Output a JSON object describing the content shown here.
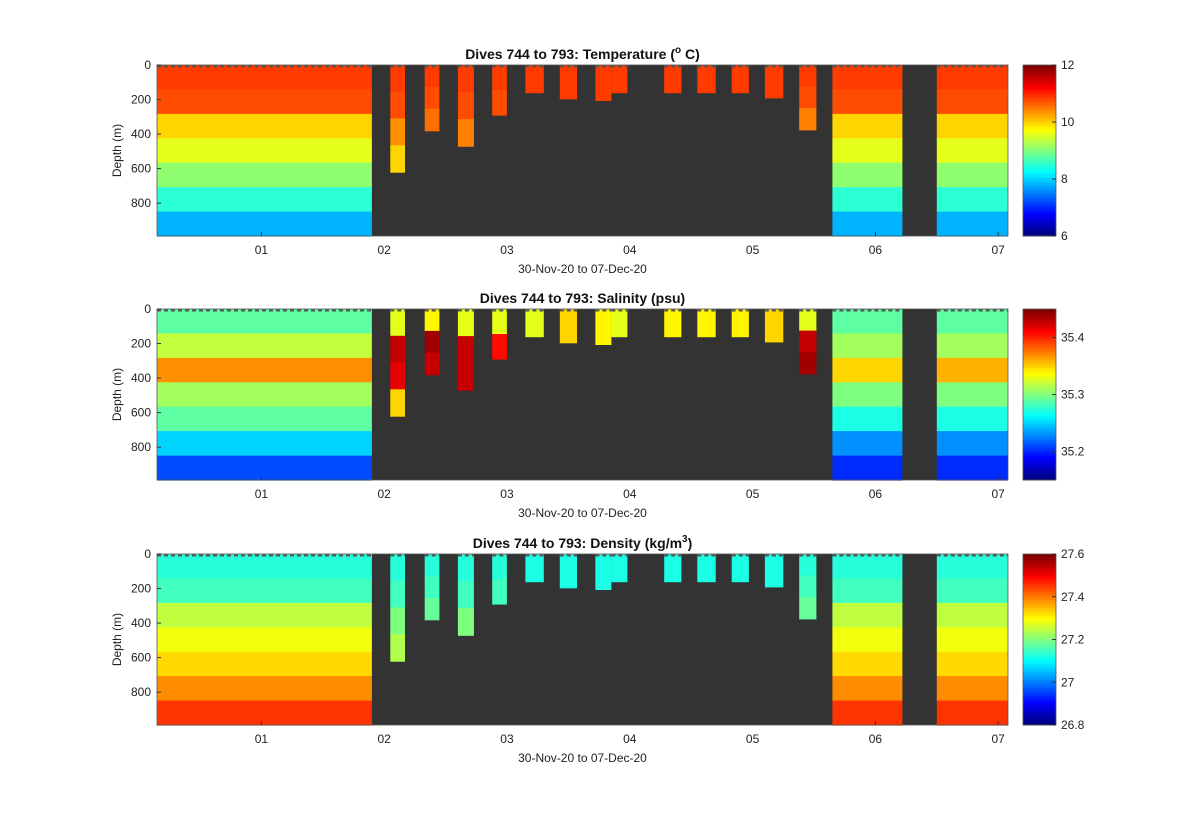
{
  "chart_data": [
    {
      "type": "heatmap",
      "title_main": "Dives 744 to 793: Temperature (",
      "title_sup": "o",
      "title_end": " C)",
      "xlabel": "30-Nov-20 to 07-Dec-20",
      "ylabel": "Depth (m)",
      "x_ticks": [
        "01",
        "02",
        "03",
        "04",
        "05",
        "06",
        "07"
      ],
      "y_ticks": [
        "0",
        "200",
        "400",
        "600",
        "800"
      ],
      "ylim": [
        0,
        990
      ],
      "colorbar_ticks": [
        "12",
        "10",
        "8",
        "6"
      ],
      "clim": [
        6,
        12
      ],
      "colormap": "jet",
      "no_data_color": "#333333",
      "profiles": [
        {
          "start_day": 0.0,
          "end_day": 1.9,
          "max_depth": 990,
          "values": [
            10.9,
            10.8,
            10.0,
            9.6,
            9.1,
            8.5,
            7.8
          ]
        },
        {
          "start_day": 2.05,
          "end_day": 2.17,
          "max_depth": 620,
          "values": [
            10.9,
            10.8,
            10.4,
            10.0
          ]
        },
        {
          "start_day": 2.33,
          "end_day": 2.45,
          "max_depth": 380,
          "values": [
            10.9,
            10.8,
            10.6
          ]
        },
        {
          "start_day": 2.6,
          "end_day": 2.73,
          "max_depth": 470,
          "values": [
            10.9,
            10.8,
            10.5
          ]
        },
        {
          "start_day": 2.88,
          "end_day": 3.0,
          "max_depth": 290,
          "values": [
            10.9,
            10.8
          ]
        },
        {
          "start_day": 3.15,
          "end_day": 3.3,
          "max_depth": 160,
          "values": [
            10.9
          ]
        },
        {
          "start_day": 3.43,
          "end_day": 3.57,
          "max_depth": 195,
          "values": [
            10.9
          ]
        },
        {
          "start_day": 3.72,
          "end_day": 3.85,
          "max_depth": 205,
          "values": [
            10.9
          ]
        },
        {
          "start_day": 3.85,
          "end_day": 3.98,
          "max_depth": 160,
          "values": [
            10.9
          ]
        },
        {
          "start_day": 4.28,
          "end_day": 4.42,
          "max_depth": 160,
          "values": [
            10.9
          ]
        },
        {
          "start_day": 4.55,
          "end_day": 4.7,
          "max_depth": 160,
          "values": [
            10.9
          ]
        },
        {
          "start_day": 4.83,
          "end_day": 4.97,
          "max_depth": 160,
          "values": [
            10.9
          ]
        },
        {
          "start_day": 5.1,
          "end_day": 5.25,
          "max_depth": 190,
          "values": [
            10.9
          ]
        },
        {
          "start_day": 5.38,
          "end_day": 5.52,
          "max_depth": 375,
          "values": [
            10.9,
            10.8,
            10.5
          ]
        },
        {
          "start_day": 5.65,
          "end_day": 6.22,
          "max_depth": 990,
          "values": [
            10.9,
            10.8,
            10.0,
            9.6,
            9.1,
            8.5,
            7.8
          ]
        },
        {
          "start_day": 6.5,
          "end_day": 7.08,
          "max_depth": 990,
          "values": [
            10.9,
            10.8,
            10.0,
            9.6,
            9.1,
            8.5,
            7.8
          ]
        }
      ]
    },
    {
      "type": "heatmap",
      "title_main": "Dives 744 to 793: Salinity (psu)",
      "title_sup": "",
      "title_end": "",
      "xlabel": "30-Nov-20 to 07-Dec-20",
      "ylabel": "Depth (m)",
      "x_ticks": [
        "01",
        "02",
        "03",
        "04",
        "05",
        "06",
        "07"
      ],
      "y_ticks": [
        "0",
        "200",
        "400",
        "600",
        "800"
      ],
      "ylim": [
        0,
        990
      ],
      "colorbar_ticks": [
        "35.4",
        "35.3",
        "35.2"
      ],
      "clim": [
        35.15,
        35.45
      ],
      "colormap": "jet",
      "no_data_color": "#333333",
      "profiles": [
        {
          "start_day": 0.0,
          "end_day": 1.9,
          "max_depth": 990,
          "values": [
            35.29,
            35.32,
            35.37,
            35.31,
            35.29,
            35.25,
            35.21
          ]
        },
        {
          "start_day": 2.05,
          "end_day": 2.17,
          "max_depth": 620,
          "values": [
            35.33,
            35.43,
            35.42,
            35.35
          ]
        },
        {
          "start_day": 2.33,
          "end_day": 2.45,
          "max_depth": 380,
          "values": [
            35.34,
            35.44,
            35.43
          ]
        },
        {
          "start_day": 2.6,
          "end_day": 2.73,
          "max_depth": 470,
          "values": [
            35.33,
            35.43,
            35.43
          ]
        },
        {
          "start_day": 2.88,
          "end_day": 3.0,
          "max_depth": 290,
          "values": [
            35.33,
            35.41
          ]
        },
        {
          "start_day": 3.15,
          "end_day": 3.3,
          "max_depth": 160,
          "values": [
            35.33
          ]
        },
        {
          "start_day": 3.43,
          "end_day": 3.57,
          "max_depth": 195,
          "values": [
            35.35
          ]
        },
        {
          "start_day": 3.72,
          "end_day": 3.85,
          "max_depth": 205,
          "values": [
            35.34
          ]
        },
        {
          "start_day": 3.85,
          "end_day": 3.98,
          "max_depth": 160,
          "values": [
            35.33
          ]
        },
        {
          "start_day": 4.28,
          "end_day": 4.42,
          "max_depth": 160,
          "values": [
            35.34
          ]
        },
        {
          "start_day": 4.55,
          "end_day": 4.7,
          "max_depth": 160,
          "values": [
            35.34
          ]
        },
        {
          "start_day": 4.83,
          "end_day": 4.97,
          "max_depth": 160,
          "values": [
            35.34
          ]
        },
        {
          "start_day": 5.1,
          "end_day": 5.25,
          "max_depth": 190,
          "values": [
            35.35
          ]
        },
        {
          "start_day": 5.38,
          "end_day": 5.52,
          "max_depth": 375,
          "values": [
            35.33,
            35.43,
            35.44
          ]
        },
        {
          "start_day": 5.65,
          "end_day": 6.22,
          "max_depth": 990,
          "values": [
            35.29,
            35.31,
            35.35,
            35.3,
            35.27,
            35.23,
            35.2
          ]
        },
        {
          "start_day": 6.5,
          "end_day": 7.08,
          "max_depth": 990,
          "values": [
            35.29,
            35.31,
            35.36,
            35.3,
            35.27,
            35.23,
            35.2
          ]
        }
      ]
    },
    {
      "type": "heatmap",
      "title_main": "Dives 744 to 793: Density (kg/m",
      "title_sup": "3",
      "title_end": ")",
      "xlabel": "30-Nov-20 to 07-Dec-20",
      "ylabel": "Depth (m)",
      "x_ticks": [
        "01",
        "02",
        "03",
        "04",
        "05",
        "06",
        "07"
      ],
      "y_ticks": [
        "0",
        "200",
        "400",
        "600",
        "800"
      ],
      "ylim": [
        0,
        990
      ],
      "colorbar_ticks": [
        "27.6",
        "27.4",
        "27.2",
        "27",
        "26.8"
      ],
      "clim": [
        26.8,
        27.6
      ],
      "colormap": "jet",
      "no_data_color": "#333333",
      "profiles": [
        {
          "start_day": 0.0,
          "end_day": 1.9,
          "max_depth": 990,
          "values": [
            27.13,
            27.15,
            27.25,
            27.29,
            27.33,
            27.39,
            27.46
          ]
        },
        {
          "start_day": 2.05,
          "end_day": 2.17,
          "max_depth": 620,
          "values": [
            27.13,
            27.15,
            27.2,
            27.24
          ]
        },
        {
          "start_day": 2.33,
          "end_day": 2.45,
          "max_depth": 380,
          "values": [
            27.13,
            27.15,
            27.18
          ]
        },
        {
          "start_day": 2.6,
          "end_day": 2.73,
          "max_depth": 470,
          "values": [
            27.13,
            27.15,
            27.2
          ]
        },
        {
          "start_day": 2.88,
          "end_day": 3.0,
          "max_depth": 290,
          "values": [
            27.13,
            27.15
          ]
        },
        {
          "start_day": 3.15,
          "end_day": 3.3,
          "max_depth": 160,
          "values": [
            27.12
          ]
        },
        {
          "start_day": 3.43,
          "end_day": 3.57,
          "max_depth": 195,
          "values": [
            27.12
          ]
        },
        {
          "start_day": 3.72,
          "end_day": 3.85,
          "max_depth": 205,
          "values": [
            27.12
          ]
        },
        {
          "start_day": 3.85,
          "end_day": 3.98,
          "max_depth": 160,
          "values": [
            27.12
          ]
        },
        {
          "start_day": 4.28,
          "end_day": 4.42,
          "max_depth": 160,
          "values": [
            27.12
          ]
        },
        {
          "start_day": 4.55,
          "end_day": 4.7,
          "max_depth": 160,
          "values": [
            27.12
          ]
        },
        {
          "start_day": 4.83,
          "end_day": 4.97,
          "max_depth": 160,
          "values": [
            27.12
          ]
        },
        {
          "start_day": 5.1,
          "end_day": 5.25,
          "max_depth": 190,
          "values": [
            27.12
          ]
        },
        {
          "start_day": 5.38,
          "end_day": 5.52,
          "max_depth": 375,
          "values": [
            27.13,
            27.15,
            27.18
          ]
        },
        {
          "start_day": 5.65,
          "end_day": 6.22,
          "max_depth": 990,
          "values": [
            27.13,
            27.15,
            27.25,
            27.29,
            27.33,
            27.39,
            27.46
          ]
        },
        {
          "start_day": 6.5,
          "end_day": 7.08,
          "max_depth": 990,
          "values": [
            27.13,
            27.15,
            27.25,
            27.29,
            27.33,
            27.39,
            27.46
          ]
        }
      ]
    }
  ]
}
